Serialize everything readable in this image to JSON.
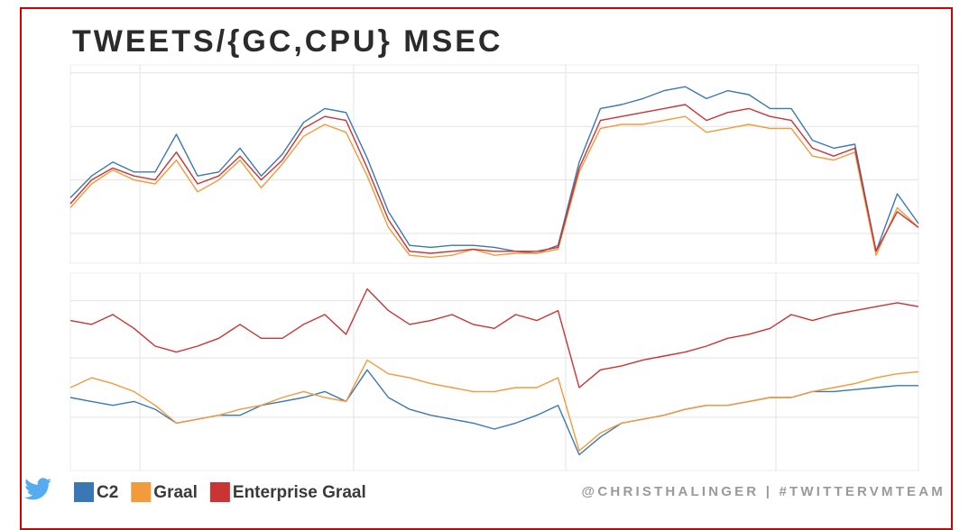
{
  "credit": "@CHRISTHALINGER | #TWITTERVMTEAM",
  "chart_data": [
    {
      "type": "line",
      "title": "TWEETS/{GC,CPU} MSEC",
      "x": [
        0,
        2.5,
        5,
        7.5,
        10,
        12.5,
        15,
        17.5,
        20,
        22.5,
        25,
        27.5,
        30,
        32.5,
        35,
        37.5,
        40,
        42.5,
        45,
        47.5,
        50,
        52.5,
        55,
        57.5,
        60,
        62.5,
        65,
        67.5,
        70,
        72.5,
        75,
        77.5,
        80,
        82.5,
        85,
        87.5,
        90,
        92.5,
        95,
        97.5,
        100
      ],
      "xlim": [
        0,
        100
      ],
      "xticks": [
        8.2,
        33.4,
        58.4,
        83.2
      ],
      "ylim": [
        0,
        100
      ],
      "yticks": [
        15,
        42,
        69,
        96
      ],
      "grid": true,
      "legend": "bottom-left",
      "series": [
        {
          "name": "C2",
          "color": "#3a78b5",
          "values": [
            33,
            44,
            51,
            46,
            46,
            65,
            44,
            46,
            58,
            44,
            55,
            71,
            78,
            76,
            53,
            26,
            9,
            8,
            9,
            9,
            8,
            6,
            5,
            9,
            51,
            78,
            80,
            83,
            87,
            89,
            83,
            87,
            85,
            78,
            78,
            62,
            58,
            60,
            6,
            35,
            20
          ]
        },
        {
          "name": "Graal",
          "color": "#f39a3a",
          "values": [
            28,
            40,
            47,
            42,
            40,
            52,
            36,
            42,
            52,
            38,
            50,
            64,
            70,
            66,
            44,
            18,
            4,
            3,
            4,
            7,
            4,
            5,
            5,
            7,
            46,
            68,
            70,
            70,
            72,
            74,
            66,
            68,
            70,
            68,
            68,
            54,
            52,
            56,
            4,
            28,
            18
          ]
        },
        {
          "name": "Enterprise Graal",
          "color": "#cc3333",
          "values": [
            30,
            42,
            48,
            44,
            42,
            56,
            40,
            44,
            54,
            42,
            52,
            68,
            74,
            72,
            48,
            22,
            6,
            5,
            6,
            7,
            6,
            6,
            6,
            8,
            48,
            72,
            74,
            76,
            78,
            80,
            72,
            76,
            78,
            74,
            72,
            58,
            54,
            58,
            6,
            26,
            18
          ]
        }
      ]
    },
    {
      "type": "line",
      "x": [
        0,
        2.5,
        5,
        7.5,
        10,
        12.5,
        15,
        17.5,
        20,
        22.5,
        25,
        27.5,
        30,
        32.5,
        35,
        37.5,
        40,
        42.5,
        45,
        47.5,
        50,
        52.5,
        55,
        57.5,
        60,
        62.5,
        65,
        67.5,
        70,
        72.5,
        75,
        77.5,
        80,
        82.5,
        85,
        87.5,
        90,
        92.5,
        95,
        97.5,
        100
      ],
      "xlim": [
        0,
        100
      ],
      "xticks": [
        8.2,
        33.4,
        58.4,
        83.2
      ],
      "ylim": [
        0,
        100
      ],
      "yticks": [
        27,
        57,
        86
      ],
      "grid": true,
      "series": [
        {
          "color": "#3a78b5",
          "values": [
            37,
            35,
            33,
            35,
            31,
            24,
            26,
            28,
            28,
            33,
            35,
            37,
            40,
            35,
            51,
            37,
            31,
            28,
            26,
            24,
            21,
            24,
            28,
            33,
            8,
            17,
            24,
            26,
            28,
            31,
            33,
            33,
            35,
            37,
            37,
            40,
            40,
            41,
            42,
            43,
            43
          ]
        },
        {
          "color": "#f39a3a",
          "values": [
            42,
            47,
            44,
            40,
            33,
            24,
            26,
            28,
            31,
            33,
            37,
            40,
            37,
            35,
            56,
            49,
            47,
            44,
            42,
            40,
            40,
            42,
            42,
            47,
            10,
            19,
            24,
            26,
            28,
            31,
            33,
            33,
            35,
            37,
            37,
            40,
            42,
            44,
            47,
            49,
            50
          ]
        },
        {
          "color": "#cc3333",
          "values": [
            76,
            74,
            79,
            72,
            63,
            60,
            63,
            67,
            74,
            67,
            67,
            74,
            79,
            69,
            92,
            81,
            74,
            76,
            79,
            74,
            72,
            79,
            76,
            81,
            42,
            51,
            53,
            56,
            58,
            60,
            63,
            67,
            69,
            72,
            79,
            76,
            79,
            81,
            83,
            85,
            83
          ]
        }
      ]
    }
  ]
}
